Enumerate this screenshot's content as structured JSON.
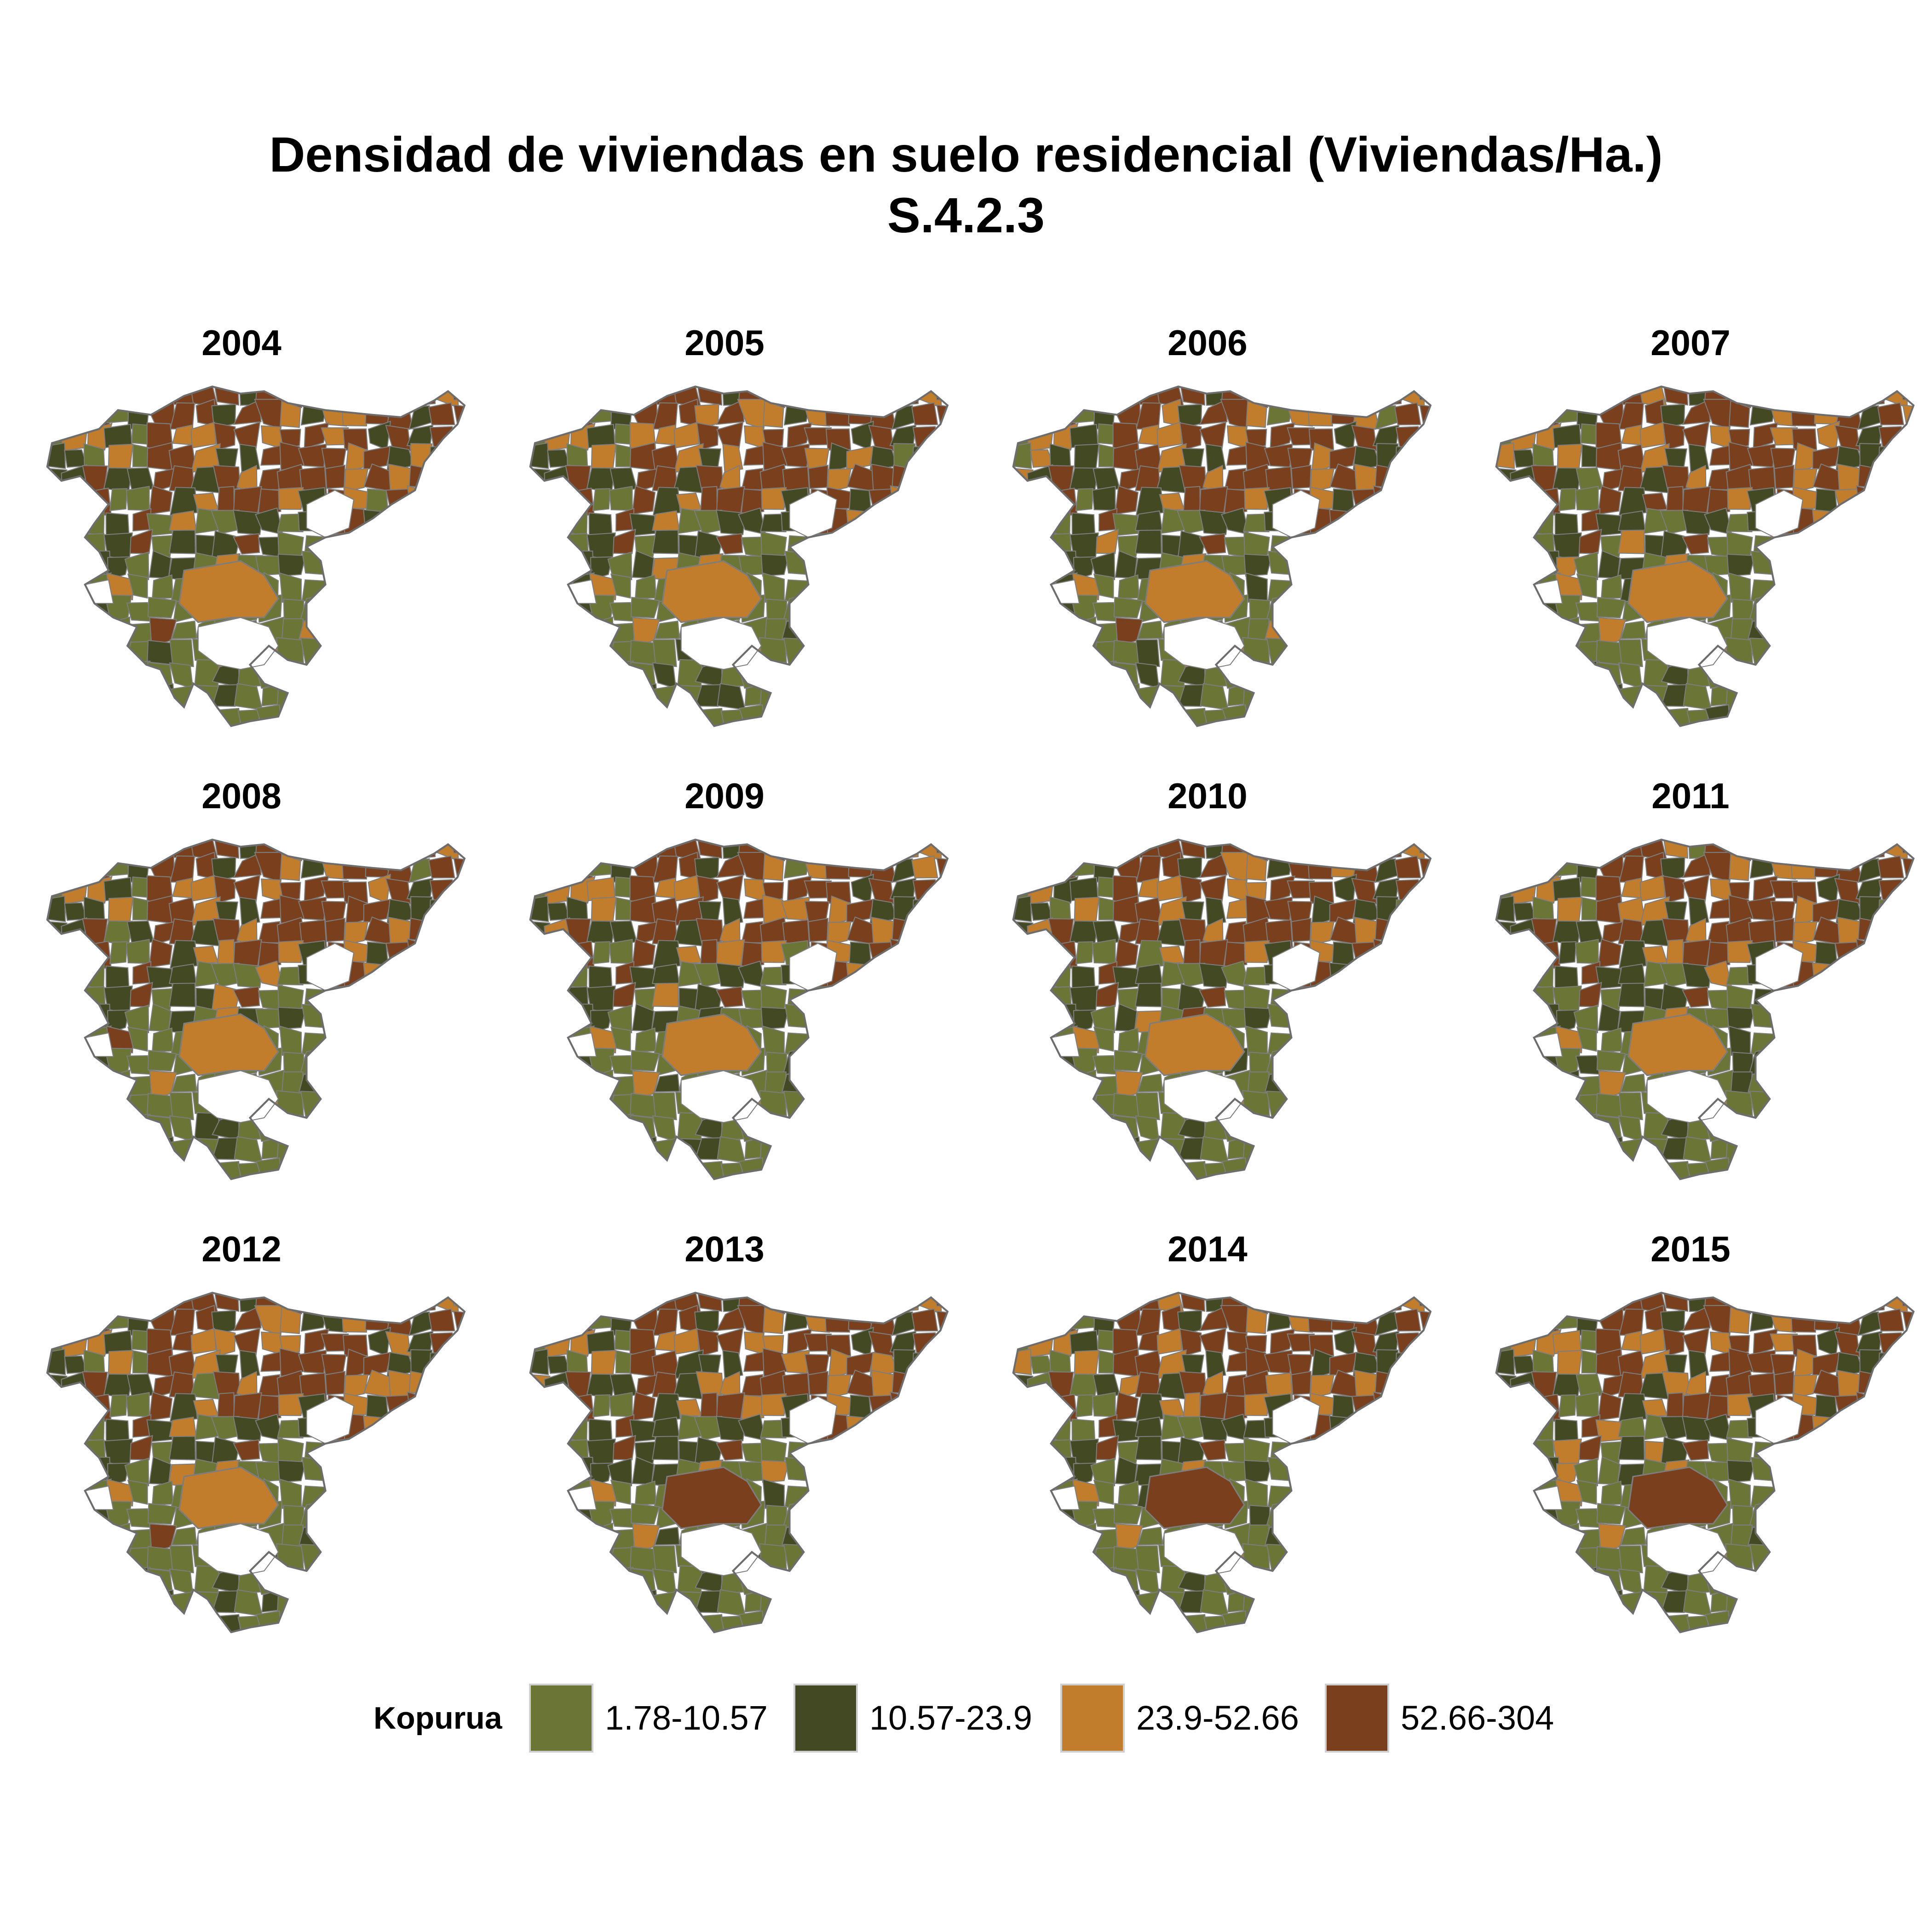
{
  "title_line1": "Densidad de viviendas en suelo residencial (Viviendas/Ha.)",
  "title_line2": "S.4.2.3",
  "palette": [
    "#6b7636",
    "#434a23",
    "#c27d2c",
    "#7a3f1c"
  ],
  "legend": {
    "title": "Kopurua",
    "items": [
      {
        "label": "1.78-10.57",
        "color": "#6b7636"
      },
      {
        "label": "10.57-23.9",
        "color": "#434a23"
      },
      {
        "label": "23.9-52.66",
        "color": "#c27d2c"
      },
      {
        "label": "52.66-304",
        "color": "#7a3f1c"
      }
    ]
  },
  "panels": [
    {
      "year": "2004",
      "central_class": 2
    },
    {
      "year": "2005",
      "central_class": 2
    },
    {
      "year": "2006",
      "central_class": 2
    },
    {
      "year": "2007",
      "central_class": 2
    },
    {
      "year": "2008",
      "central_class": 2
    },
    {
      "year": "2009",
      "central_class": 2
    },
    {
      "year": "2010",
      "central_class": 2
    },
    {
      "year": "2011",
      "central_class": 2
    },
    {
      "year": "2012",
      "central_class": 2
    },
    {
      "year": "2013",
      "central_class": 3
    },
    {
      "year": "2014",
      "central_class": 3
    },
    {
      "year": "2015",
      "central_class": 3
    }
  ]
}
